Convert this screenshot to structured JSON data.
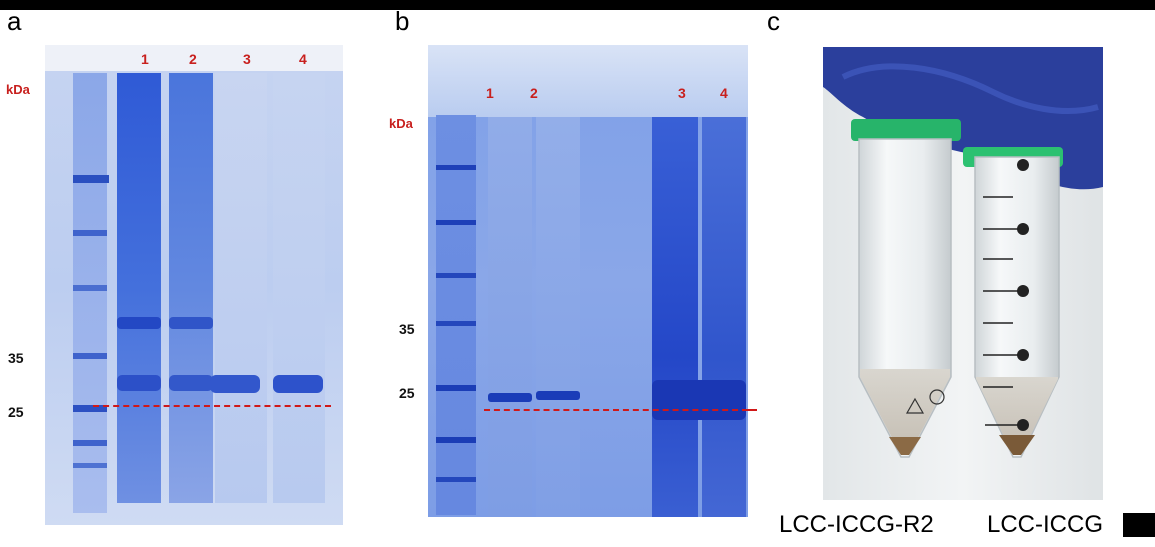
{
  "panels": [
    {
      "letter": "a",
      "kda_label": "kDa",
      "lanes": [
        "1",
        "2",
        "3",
        "4"
      ],
      "markers": [
        "35",
        "25"
      ]
    },
    {
      "letter": "b",
      "kda_label": "kDa",
      "lanes": [
        "1",
        "2",
        "3",
        "4"
      ],
      "markers": [
        "35",
        "25"
      ]
    },
    {
      "letter": "c",
      "tube_captions": [
        "LCC-ICCG-R2",
        "LCC-ICCG"
      ]
    }
  ],
  "colors": {
    "gel_blue": "#3f6fd8",
    "gel_light": "#c9d6f2",
    "label_red": "#c8201e",
    "dashed_line": "#d01818",
    "glove_blue": "#2b3f9c"
  }
}
